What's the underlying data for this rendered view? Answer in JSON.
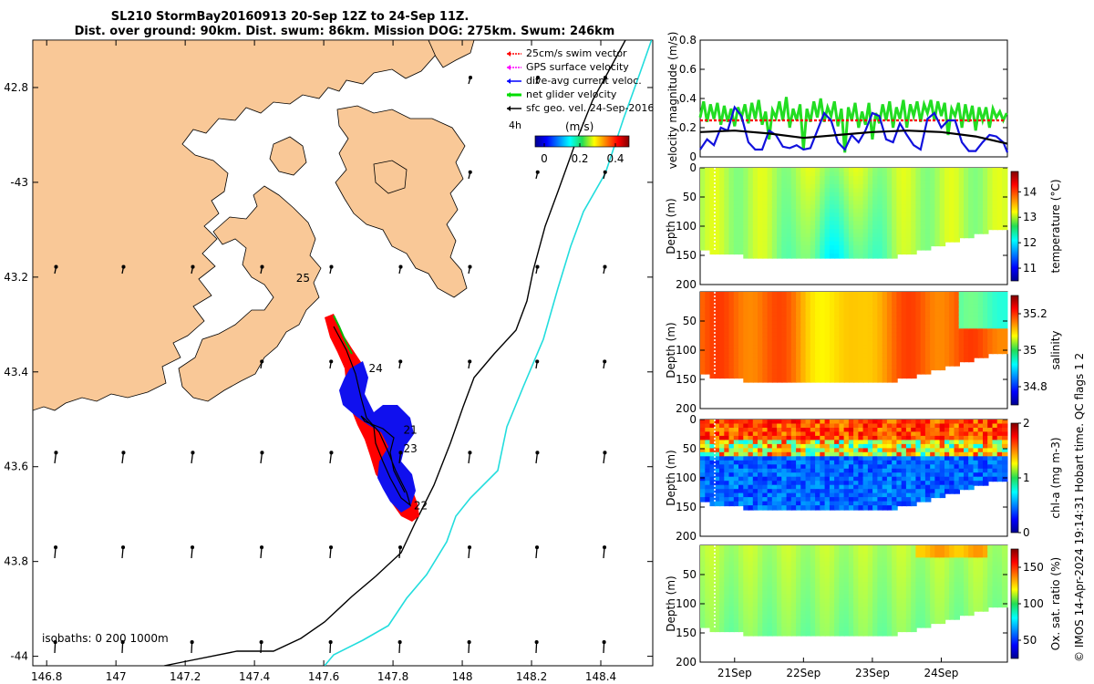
{
  "header": {
    "line1": "SL210 StormBay20160913 20-Sep 12Z to 24-Sep 11Z.",
    "line2": "Dist. over ground: 90km. Dist. swum: 86km. Mission DOG: 275km. Swum: 246km"
  },
  "map": {
    "lat_ticks": [
      "42.8",
      "-43",
      "43.2",
      "43.4",
      "43.6",
      "43.8",
      "-44"
    ],
    "lat_values": [
      -42.8,
      -43.0,
      -43.2,
      -43.4,
      -43.6,
      -43.8,
      -44.0
    ],
    "lon_ticks": [
      "146.8",
      "147",
      "147.2",
      "147.4",
      "147.6",
      "147.8",
      "148",
      "148.2",
      "148.4"
    ],
    "lon_values": [
      146.8,
      147.0,
      147.2,
      147.4,
      147.6,
      147.8,
      148.0,
      148.2,
      148.4
    ],
    "xlim": [
      146.76,
      148.55
    ],
    "ylim": [
      -44.02,
      -42.7
    ],
    "legend": [
      "25cm/s swim vector",
      "GPS surface velocity",
      "dive-avg current veloc.",
      "net glider velocity",
      "sfc geo. vel. 24-Sep-2016"
    ],
    "legend_colors": [
      "#ff0000",
      "#ff00ff",
      "#0000ff",
      "#00dd00",
      "#000000"
    ],
    "scale_label": "4h",
    "colorbar_title": "(m/s)",
    "colorbar_ticks": [
      "0",
      "0.2",
      "0.4"
    ],
    "day_labels": [
      {
        "text": "25",
        "lon": 147.52,
        "lat": -43.21
      },
      {
        "text": "24",
        "lon": 147.73,
        "lat": -43.4
      },
      {
        "text": "21",
        "lon": 147.83,
        "lat": -43.53
      },
      {
        "text": "23",
        "lon": 147.83,
        "lat": -43.57
      },
      {
        "text": "22",
        "lon": 147.86,
        "lat": -43.69
      }
    ],
    "isobath_label": "isobaths: 0   200  1000m",
    "land_color": "#f9c897",
    "isobath_200_color": "#000000",
    "isobath_1000_color": "#22dddd"
  },
  "chart_data": [
    {
      "type": "line",
      "title": "",
      "ylabel": "velocity magnitude (m/s)",
      "ylim": [
        0,
        0.8
      ],
      "yticks": [
        "0",
        "0.2",
        "0.4",
        "0.6",
        "0.8"
      ],
      "yvalues": [
        0,
        0.2,
        0.4,
        0.6,
        0.8
      ],
      "xlim": [
        20.5,
        24.96
      ],
      "series": [
        {
          "name": "net glider velocity",
          "color": "#22dd22",
          "x": [
            20.5,
            20.55,
            20.6,
            20.65,
            20.7,
            20.75,
            20.8,
            20.85,
            20.9,
            20.95,
            21.0,
            21.05,
            21.1,
            21.15,
            21.2,
            21.25,
            21.3,
            21.35,
            21.4,
            21.45,
            21.5,
            21.55,
            21.6,
            21.65,
            21.7,
            21.75,
            21.8,
            21.85,
            21.9,
            21.95,
            22.0,
            22.05,
            22.1,
            22.15,
            22.2,
            22.25,
            22.3,
            22.35,
            22.4,
            22.45,
            22.5,
            22.55,
            22.6,
            22.65,
            22.7,
            22.75,
            22.8,
            22.85,
            22.9,
            22.95,
            23.0,
            23.05,
            23.1,
            23.15,
            23.2,
            23.25,
            23.3,
            23.35,
            23.4,
            23.45,
            23.5,
            23.55,
            23.6,
            23.65,
            23.7,
            23.75,
            23.8,
            23.85,
            23.9,
            23.95,
            24.0,
            24.05,
            24.1,
            24.15,
            24.2,
            24.25,
            24.3,
            24.35,
            24.4,
            24.45,
            24.5,
            24.55,
            24.6,
            24.65,
            24.7,
            24.75,
            24.8,
            24.85,
            24.9,
            24.95
          ],
          "values": [
            0.27,
            0.38,
            0.24,
            0.36,
            0.26,
            0.37,
            0.22,
            0.35,
            0.24,
            0.33,
            0.21,
            0.34,
            0.27,
            0.36,
            0.23,
            0.37,
            0.26,
            0.39,
            0.22,
            0.31,
            0.12,
            0.32,
            0.27,
            0.38,
            0.25,
            0.41,
            0.2,
            0.33,
            0.25,
            0.36,
            0.05,
            0.33,
            0.24,
            0.38,
            0.27,
            0.4,
            0.24,
            0.34,
            0.28,
            0.38,
            0.21,
            0.33,
            0.03,
            0.34,
            0.25,
            0.37,
            0.2,
            0.31,
            0.22,
            0.37,
            0.12,
            0.3,
            0.23,
            0.36,
            0.25,
            0.38,
            0.2,
            0.34,
            0.26,
            0.39,
            0.2,
            0.36,
            0.28,
            0.38,
            0.24,
            0.36,
            0.3,
            0.39,
            0.25,
            0.38,
            0.28,
            0.37,
            0.15,
            0.33,
            0.28,
            0.37,
            0.2,
            0.36,
            0.24,
            0.35,
            0.18,
            0.34,
            0.25,
            0.34,
            0.2,
            0.33,
            0.27,
            0.31,
            0.25,
            0.3
          ]
        },
        {
          "name": "25cm/s swim vector",
          "color": "#ff0000",
          "dashed": true,
          "x": [
            20.5,
            24.93
          ],
          "values": [
            0.25,
            0.25
          ]
        },
        {
          "name": "dive-avg current veloc.",
          "color": "#1111dd",
          "x": [
            20.5,
            20.6,
            20.7,
            20.8,
            20.9,
            21.0,
            21.1,
            21.2,
            21.3,
            21.4,
            21.5,
            21.6,
            21.7,
            21.8,
            21.9,
            22.0,
            22.1,
            22.2,
            22.3,
            22.4,
            22.5,
            22.6,
            22.7,
            22.8,
            22.9,
            23.0,
            23.1,
            23.2,
            23.3,
            23.4,
            23.5,
            23.6,
            23.7,
            23.8,
            23.9,
            24.0,
            24.1,
            24.2,
            24.3,
            24.4,
            24.5,
            24.6,
            24.7,
            24.8,
            24.9,
            24.96
          ],
          "values": [
            0.05,
            0.12,
            0.08,
            0.2,
            0.18,
            0.34,
            0.28,
            0.1,
            0.05,
            0.05,
            0.18,
            0.15,
            0.07,
            0.06,
            0.08,
            0.05,
            0.06,
            0.18,
            0.3,
            0.25,
            0.1,
            0.05,
            0.15,
            0.1,
            0.18,
            0.3,
            0.28,
            0.12,
            0.1,
            0.23,
            0.15,
            0.08,
            0.05,
            0.26,
            0.3,
            0.2,
            0.25,
            0.25,
            0.1,
            0.04,
            0.04,
            0.1,
            0.15,
            0.14,
            0.1,
            0.03
          ]
        },
        {
          "name": "sfc geo. vel.",
          "color": "#000000",
          "x": [
            20.5,
            21.0,
            21.5,
            22.0,
            22.5,
            23.0,
            23.5,
            24.0,
            24.5,
            24.96
          ],
          "values": [
            0.17,
            0.18,
            0.16,
            0.13,
            0.15,
            0.17,
            0.18,
            0.17,
            0.14,
            0.09
          ]
        }
      ]
    },
    {
      "type": "heatmap",
      "ylabel": "Depth (m)",
      "cbar_label": "temperature (°C)",
      "ylim": [
        200,
        0
      ],
      "yticks": [
        "0",
        "50",
        "100",
        "150",
        "200"
      ],
      "cbar_ticks": [
        "11",
        "12",
        "13",
        "14"
      ],
      "cbar_values": [
        11,
        12,
        13,
        14
      ],
      "clim": [
        10.5,
        14.8
      ]
    },
    {
      "type": "heatmap",
      "ylabel": "Depth (m)",
      "cbar_label": "salinity",
      "ylim": [
        200,
        0
      ],
      "yticks": [
        "50",
        "100",
        "150",
        "200"
      ],
      "cbar_ticks": [
        "34.8",
        "35",
        "35.2"
      ],
      "cbar_values": [
        34.8,
        35.0,
        35.2
      ],
      "clim": [
        34.7,
        35.3
      ]
    },
    {
      "type": "heatmap",
      "ylabel": "Depth (m)",
      "cbar_label": "chl-a (mg m-3)",
      "ylim": [
        200,
        0
      ],
      "yticks": [
        "0",
        "50",
        "100",
        "150",
        "200"
      ],
      "cbar_ticks": [
        "0",
        "1",
        "2"
      ],
      "cbar_values": [
        0,
        1,
        2
      ],
      "clim": [
        0,
        2
      ]
    },
    {
      "type": "heatmap",
      "ylabel": "Depth (m)",
      "cbar_label": "Ox. sat. ratio (%)",
      "ylim": [
        200,
        0
      ],
      "yticks": [
        "50",
        "100",
        "150",
        "200"
      ],
      "cbar_ticks": [
        "50",
        "100",
        "150"
      ],
      "cbar_values": [
        50,
        100,
        150
      ],
      "clim": [
        25,
        175
      ],
      "xticks": [
        "21Sep",
        "22Sep",
        "23Sep",
        "24Sep"
      ],
      "xvalues": [
        21,
        22,
        23,
        24
      ]
    }
  ],
  "side_note": "© IMOS 14-Apr-2024 19:14:31 Hobart time. QC flags 1  2"
}
